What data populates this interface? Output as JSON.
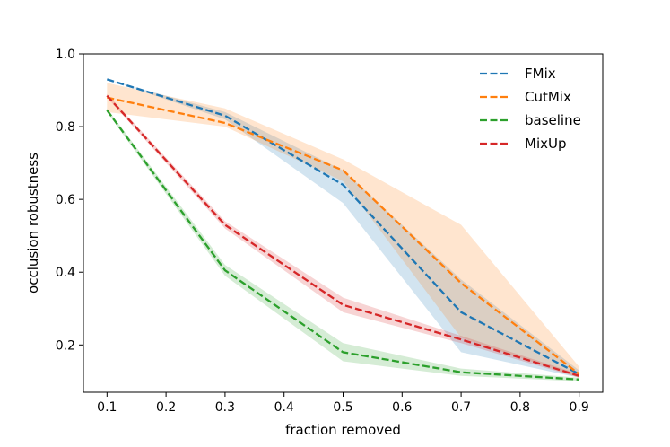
{
  "chart_data": {
    "type": "line",
    "xlabel": "fraction removed",
    "ylabel": "occlusion robustness",
    "xlim": [
      0.06,
      0.94
    ],
    "ylim": [
      0.07,
      1.0
    ],
    "x_ticks": [
      0.1,
      0.2,
      0.3,
      0.4,
      0.5,
      0.6,
      0.7,
      0.8,
      0.9
    ],
    "y_ticks": [
      0.2,
      0.4,
      0.6,
      0.8,
      1.0
    ],
    "x": [
      0.1,
      0.3,
      0.5,
      0.7,
      0.9
    ],
    "legend_position": "top-right",
    "grid": false,
    "series": [
      {
        "name": "FMix",
        "color": "#1f77b4",
        "values": [
          0.93,
          0.83,
          0.64,
          0.29,
          0.12
        ],
        "lower": [
          0.93,
          0.82,
          0.59,
          0.18,
          0.11
        ],
        "upper": [
          0.93,
          0.84,
          0.68,
          0.38,
          0.13
        ]
      },
      {
        "name": "CutMix",
        "color": "#ff7f0e",
        "values": [
          0.88,
          0.81,
          0.68,
          0.37,
          0.12
        ],
        "lower": [
          0.84,
          0.8,
          0.65,
          0.22,
          0.11
        ],
        "upper": [
          0.92,
          0.85,
          0.71,
          0.53,
          0.14
        ]
      },
      {
        "name": "baseline",
        "color": "#2ca02c",
        "values": [
          0.845,
          0.405,
          0.18,
          0.125,
          0.105
        ],
        "lower": [
          0.84,
          0.39,
          0.155,
          0.115,
          0.1
        ],
        "upper": [
          0.85,
          0.42,
          0.205,
          0.135,
          0.11
        ]
      },
      {
        "name": "MixUp",
        "color": "#d62728",
        "values": [
          0.885,
          0.53,
          0.31,
          0.215,
          0.115
        ],
        "lower": [
          0.88,
          0.52,
          0.29,
          0.205,
          0.11
        ],
        "upper": [
          0.89,
          0.54,
          0.33,
          0.225,
          0.12
        ]
      }
    ]
  }
}
